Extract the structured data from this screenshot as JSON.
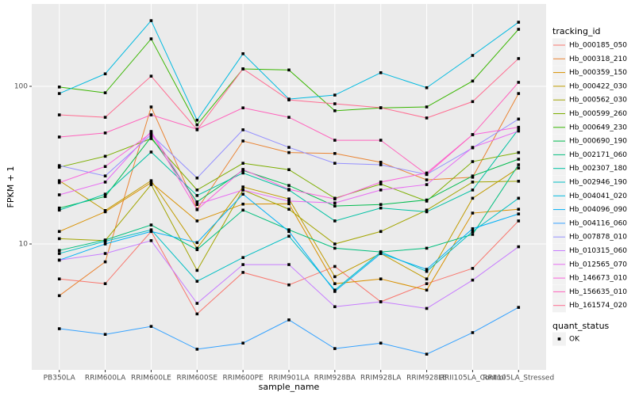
{
  "chart_data": {
    "type": "line",
    "x_label": "sample_name",
    "y_label": "FPKM + 1",
    "log_y": true,
    "grid": true,
    "legend_title": "tracking_id",
    "shape_legend_title": "quant_status",
    "shape_legend_labels": [
      "OK"
    ],
    "categories": [
      "PB350LA",
      "RRIM600LA",
      "RRIM600LE",
      "RRIM600SE",
      "RRIM600PE",
      "RRIM901LA",
      "RRIM928BA",
      "RRIM928LA",
      "RRIM928LE",
      "RRII105LA_Control",
      "RRII105LA_Stressed"
    ],
    "ylim": [
      1.59,
      333
    ],
    "yticks": [
      10,
      100
    ],
    "series": [
      {
        "name": "Hb_000185_050",
        "color": "#F8766D",
        "values": [
          6.0,
          5.6,
          12,
          3.6,
          6.6,
          5.5,
          7.2,
          4.3,
          5.6,
          7,
          14
        ]
      },
      {
        "name": "Hb_000318_210",
        "color": "#EA8331",
        "values": [
          4.7,
          7.7,
          74,
          16.6,
          45,
          38,
          37.5,
          33,
          25.5,
          26.5,
          90
        ]
      },
      {
        "name": "Hb_000359_150",
        "color": "#D89000",
        "values": [
          12,
          16,
          24.5,
          14,
          17.9,
          18,
          5.6,
          6,
          5.1,
          15.7,
          16.6
        ]
      },
      {
        "name": "Hb_000422_030",
        "color": "#C09B00",
        "values": [
          25.2,
          16.3,
          25.2,
          9.4,
          23,
          19.3,
          6.2,
          8.7,
          6,
          19.5,
          30.3
        ]
      },
      {
        "name": "Hb_000562_030",
        "color": "#A3A500",
        "values": [
          10.8,
          10.5,
          23.8,
          6.8,
          22,
          16.6,
          10,
          12,
          16.4,
          24.7,
          25
        ]
      },
      {
        "name": "Hb_000599_260",
        "color": "#7CAE00",
        "values": [
          30.7,
          36,
          46.6,
          22,
          32.5,
          29.6,
          19.5,
          24,
          18.7,
          33.3,
          38
        ]
      },
      {
        "name": "Hb_000649_230",
        "color": "#39B600",
        "values": [
          99,
          91,
          200,
          57,
          129,
          127,
          70,
          73,
          74,
          108,
          230
        ]
      },
      {
        "name": "Hb_000690_190",
        "color": "#00BB4E",
        "values": [
          16.9,
          20,
          47.7,
          18.5,
          29.3,
          23.5,
          17.4,
          17.8,
          19,
          27,
          34.5
        ]
      },
      {
        "name": "Hb_002171_060",
        "color": "#00BF7D",
        "values": [
          9.1,
          10.6,
          13.2,
          9.2,
          16.4,
          12.3,
          9.4,
          8.9,
          9.4,
          11.5,
          31.8
        ]
      },
      {
        "name": "Hb_002307_180",
        "color": "#00C1A3",
        "values": [
          16.4,
          20.7,
          38.3,
          20.3,
          28.2,
          22,
          14,
          16.9,
          16,
          22,
          53.5
        ]
      },
      {
        "name": "Hb_002946_190",
        "color": "#00BFC4",
        "values": [
          8.7,
          10.4,
          12.3,
          5.8,
          8.2,
          11.2,
          5.1,
          8.9,
          6.7,
          12,
          19.5
        ]
      },
      {
        "name": "Hb_004041_020",
        "color": "#00BAE0",
        "values": [
          90,
          120,
          261,
          61,
          161,
          83,
          88,
          122,
          98,
          157,
          255
        ]
      },
      {
        "name": "Hb_004096_090",
        "color": "#00B0F6",
        "values": [
          7.9,
          10,
          12,
          10.2,
          20.7,
          12,
          5,
          8.7,
          6.9,
          12.5,
          15.5
        ]
      },
      {
        "name": "Hb_004116_060",
        "color": "#35A2FF",
        "values": [
          2.9,
          2.67,
          3.0,
          2.15,
          2.35,
          3.3,
          2.17,
          2.35,
          2.0,
          2.74,
          3.96
        ]
      },
      {
        "name": "Hb_007878_010",
        "color": "#9590FF",
        "values": [
          31.4,
          27,
          49.4,
          26.2,
          53,
          41,
          32.5,
          31.8,
          27.6,
          40.7,
          62
        ]
      },
      {
        "name": "Hb_010315_060",
        "color": "#C77CFF",
        "values": [
          7.9,
          8.7,
          10.5,
          4.2,
          7.4,
          7.4,
          4,
          4.3,
          3.9,
          5.9,
          9.6
        ]
      },
      {
        "name": "Hb_012565_070",
        "color": "#E76BF3",
        "values": [
          20.5,
          24.7,
          51.7,
          17.8,
          22,
          18.7,
          18.2,
          22,
          23.8,
          41,
          52
        ]
      },
      {
        "name": "Hb_146673_010",
        "color": "#FA62DB",
        "values": [
          24.5,
          31,
          50.6,
          16.5,
          29.7,
          22.2,
          19.3,
          24.7,
          28.2,
          49.4,
          55
        ]
      },
      {
        "name": "Hb_156635_010",
        "color": "#FF62BC",
        "values": [
          47.7,
          50.6,
          65.9,
          53.5,
          73,
          63.6,
          45.5,
          45.5,
          27.6,
          49.4,
          106
        ]
      },
      {
        "name": "Hb_161574_020",
        "color": "#FF6C91",
        "values": [
          65.9,
          63.6,
          116,
          53,
          129,
          82,
          77.5,
          73.2,
          63,
          80,
          150
        ]
      }
    ]
  }
}
